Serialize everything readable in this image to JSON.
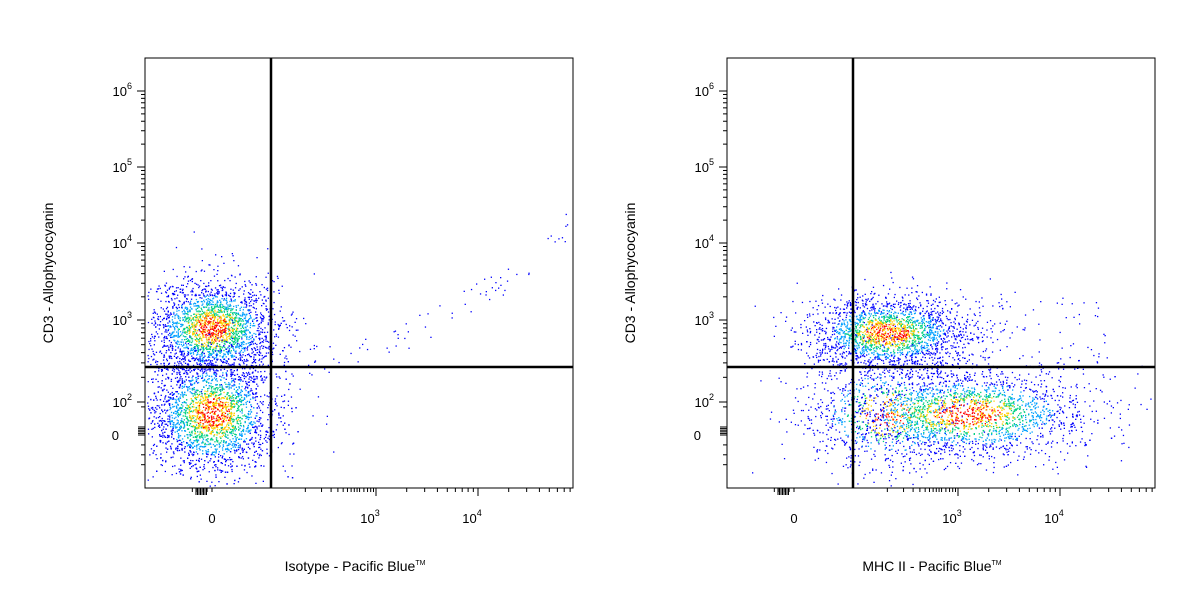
{
  "chart_data": [
    {
      "type": "scatter",
      "style": "density-dot-plot",
      "xlabel": "Isotype - Pacific Blue",
      "xlabel_mark": "TM",
      "ylabel": "CD3 - Allophycocyanin",
      "x_scale": "biexponential",
      "y_scale": "biexponential",
      "x_ticks": [
        {
          "base": "0",
          "exp": "",
          "value": 0
        },
        {
          "base": "10",
          "exp": "3",
          "value": 1000
        },
        {
          "base": "10",
          "exp": "4",
          "value": 10000
        }
      ],
      "y_ticks": [
        {
          "base": "0",
          "exp": "",
          "value": 0
        },
        {
          "base": "10",
          "exp": "2",
          "value": 100
        },
        {
          "base": "10",
          "exp": "3",
          "value": 1000
        },
        {
          "base": "10",
          "exp": "4",
          "value": 10000
        },
        {
          "base": "10",
          "exp": "5",
          "value": 100000
        },
        {
          "base": "10",
          "exp": "6",
          "value": 1000000
        }
      ],
      "quadrant_gate": {
        "x": 250,
        "y": 250
      },
      "populations": [
        {
          "label": "CD3+ isotype-negative",
          "x_center": 0,
          "y_center": 800,
          "relative_size": 0.45
        },
        {
          "label": "CD3- isotype-negative",
          "x_center": 0,
          "y_center": 20,
          "relative_size": 0.55
        }
      ],
      "colors": [
        "#0000ff",
        "#00a0ff",
        "#00d080",
        "#ffd000",
        "#ff0000"
      ]
    },
    {
      "type": "scatter",
      "style": "density-dot-plot",
      "xlabel": "MHC II - Pacific Blue",
      "xlabel_mark": "TM",
      "ylabel": "CD3 - Allophycocyanin",
      "x_scale": "biexponential",
      "y_scale": "biexponential",
      "x_ticks": [
        {
          "base": "0",
          "exp": "",
          "value": 0
        },
        {
          "base": "10",
          "exp": "3",
          "value": 1000
        },
        {
          "base": "10",
          "exp": "4",
          "value": 10000
        }
      ],
      "y_ticks": [
        {
          "base": "0",
          "exp": "",
          "value": 0
        },
        {
          "base": "10",
          "exp": "2",
          "value": 100
        },
        {
          "base": "10",
          "exp": "3",
          "value": 1000
        },
        {
          "base": "10",
          "exp": "4",
          "value": 10000
        },
        {
          "base": "10",
          "exp": "5",
          "value": 100000
        },
        {
          "base": "10",
          "exp": "6",
          "value": 1000000
        }
      ],
      "quadrant_gate": {
        "x": 250,
        "y": 250
      },
      "populations": [
        {
          "label": "CD3+ MHC II-negative",
          "x_center": 50,
          "y_center": 700,
          "relative_size": 0.4
        },
        {
          "label": "CD3- MHC II-negative",
          "x_center": 50,
          "y_center": 20,
          "relative_size": 0.15
        },
        {
          "label": "CD3- MHC II-positive",
          "x_center": 1200,
          "y_center": 20,
          "relative_size": 0.45
        }
      ],
      "colors": [
        "#0000ff",
        "#00a0ff",
        "#00d080",
        "#ffd000",
        "#ff0000"
      ]
    }
  ]
}
